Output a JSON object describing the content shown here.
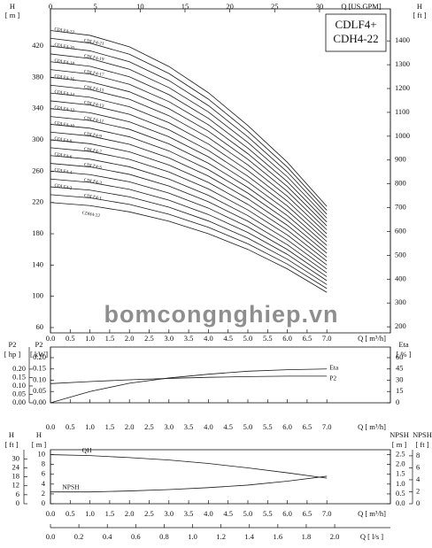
{
  "chart_data": [
    {
      "type": "line",
      "title": [
        "CDLF4+",
        "CDH4-22"
      ],
      "watermark": "bomcongnghiep.vn",
      "x": [
        0,
        1,
        2,
        3,
        4,
        5,
        6,
        7
      ],
      "xlim": [
        0,
        8.61
      ],
      "xticks": [
        {
          "value": 0,
          "label": "0.0"
        },
        0.5,
        {
          "value": 1,
          "label": "1.0"
        },
        1.5,
        {
          "value": 2,
          "label": "2.0"
        },
        2.5,
        {
          "value": 3,
          "label": "3.0"
        },
        3.5,
        {
          "value": 4,
          "label": "4.0"
        },
        4.5,
        {
          "value": 5,
          "label": "5.0"
        },
        5.5,
        {
          "value": 6,
          "label": "6.0"
        },
        6.5,
        {
          "value": 7,
          "label": "7.0"
        }
      ],
      "xlabel": "Q [ m³/h]",
      "x2label": "Q [US.GPM]",
      "x2lim": [
        0,
        37.9
      ],
      "x2ticks": [
        0,
        5,
        10,
        15,
        20,
        25,
        30
      ],
      "ylabel": {
        "name": "H",
        "unit": "[ m ]"
      },
      "ylim": [
        53.2,
        467.7
      ],
      "yticks": [
        60,
        100,
        140,
        180,
        220,
        260,
        300,
        340,
        380,
        420
      ],
      "y2label": {
        "name": "H",
        "unit": "[ ft ]"
      },
      "y2lim": [
        174.5,
        1534.5
      ],
      "y2ticks": [
        200,
        300,
        400,
        500,
        600,
        700,
        800,
        900,
        1000,
        1100,
        1200,
        1300,
        1400
      ],
      "series": [
        {
          "name": "CDLF4-22",
          "color": "#1a1a1a",
          "values": [
            440,
            433.8,
            419.2,
            394,
            360.4,
            318.4,
            271.4,
            215
          ]
        },
        {
          "name": "CDLF4-21",
          "color": "#1a1a1a",
          "values": [
            430,
            423.9,
            409.6,
            385,
            352.2,
            311.2,
            265.2,
            210
          ]
        },
        {
          "name": "CDLF4-20",
          "color": "#1a1a1a",
          "values": [
            420,
            414,
            400,
            376,
            344,
            304,
            259,
            205
          ]
        },
        {
          "name": "CDLF4-19",
          "color": "#1a1a1a",
          "values": [
            410,
            404.1,
            390.4,
            367,
            335.8,
            296.8,
            252.8,
            200
          ]
        },
        {
          "name": "CDLF4-18",
          "color": "#1a1a1a",
          "values": [
            400,
            394.2,
            380.8,
            358,
            327.6,
            289.6,
            246.6,
            195
          ]
        },
        {
          "name": "CDLF4-17",
          "color": "#1a1a1a",
          "values": [
            390,
            384.3,
            371.2,
            349,
            319.4,
            282.4,
            240.4,
            190
          ]
        },
        {
          "name": "CDLF4-16",
          "color": "#1a1a1a",
          "values": [
            380,
            374.4,
            361.6,
            340,
            311.2,
            275.2,
            234.2,
            185
          ]
        },
        {
          "name": "CDLF4-15",
          "color": "#1a1a1a",
          "values": [
            370,
            364.5,
            352,
            331,
            303,
            268,
            228,
            180
          ]
        },
        {
          "name": "CDLF4-14",
          "color": "#1a1a1a",
          "values": [
            360,
            354.6,
            342.4,
            322,
            294.8,
            260.8,
            221.8,
            175
          ]
        },
        {
          "name": "CDLF4-13",
          "color": "#1a1a1a",
          "values": [
            350,
            344.7,
            332.8,
            313,
            286.6,
            253.6,
            215.6,
            170
          ]
        },
        {
          "name": "CDLF4-12",
          "color": "#1a1a1a",
          "values": [
            340,
            334.8,
            323.2,
            304,
            278.4,
            246.4,
            209.4,
            165
          ]
        },
        {
          "name": "CDLF4-11",
          "color": "#1a1a1a",
          "values": [
            330,
            324.9,
            313.6,
            295,
            270.2,
            239.2,
            203.2,
            160
          ]
        },
        {
          "name": "CDLF4-10",
          "color": "#1a1a1a",
          "values": [
            320,
            315,
            304,
            286,
            262,
            232,
            197,
            155
          ]
        },
        {
          "name": "CDLF4-9",
          "color": "#1a1a1a",
          "values": [
            310,
            305.1,
            294.4,
            277,
            253.8,
            224.8,
            190.8,
            150
          ]
        },
        {
          "name": "CDLF4-8",
          "color": "#1a1a1a",
          "values": [
            300,
            295.2,
            284.8,
            268,
            245.6,
            217.6,
            184.6,
            145
          ]
        },
        {
          "name": "CDLF4-7",
          "color": "#1a1a1a",
          "values": [
            290,
            285.3,
            275.2,
            259,
            237.4,
            210.4,
            178.4,
            140
          ]
        },
        {
          "name": "CDLF4-6",
          "color": "#1a1a1a",
          "values": [
            280,
            275.4,
            265.6,
            250,
            229.2,
            203.2,
            172.2,
            135
          ]
        },
        {
          "name": "CDLF4-5",
          "color": "#1a1a1a",
          "values": [
            270,
            265.5,
            256,
            241,
            221,
            196,
            166,
            130
          ]
        },
        {
          "name": "CDLF4-4",
          "color": "#1a1a1a",
          "values": [
            260,
            255.6,
            246.4,
            232,
            212.8,
            188.8,
            159.8,
            125
          ]
        },
        {
          "name": "CDLF4-3",
          "color": "#1a1a1a",
          "values": [
            250,
            245.7,
            236.8,
            223,
            204.6,
            181.6,
            153.6,
            120
          ]
        },
        {
          "name": "CDLF4-2",
          "color": "#1a1a1a",
          "values": [
            240,
            235.8,
            227.2,
            214,
            196.4,
            174.4,
            147.4,
            115
          ]
        },
        {
          "name": "CDLF4-1",
          "color": "#1a1a1a",
          "values": [
            230,
            225.9,
            217.6,
            205,
            188.2,
            167.2,
            141.2,
            110
          ]
        },
        {
          "name": "CDH4-22",
          "color": "#1a1a1a",
          "values": [
            220,
            216,
            208,
            196,
            180,
            160,
            135,
            105
          ]
        }
      ]
    },
    {
      "type": "line",
      "x": [
        0,
        1,
        2,
        3,
        4,
        5,
        6,
        7
      ],
      "xlim": [
        0,
        8.61
      ],
      "xticks": [
        {
          "value": 0,
          "label": "0.0"
        },
        0.5,
        {
          "value": 1,
          "label": "1.0"
        },
        1.5,
        {
          "value": 2,
          "label": "2.0"
        },
        2.5,
        {
          "value": 3,
          "label": "3.0"
        },
        3.5,
        {
          "value": 4,
          "label": "4.0"
        },
        4.5,
        {
          "value": 5,
          "label": "5.0"
        },
        5.5,
        {
          "value": 6,
          "label": "6.0"
        },
        6.5,
        {
          "value": 7,
          "label": "7.0"
        }
      ],
      "xlabel": "Q [ m³/h]",
      "hplabel": {
        "name": "P2",
        "unit": "[ hp ]"
      },
      "hplim": [
        0,
        0.331
      ],
      "hpticks": [
        {
          "value": 0,
          "label": "0.00"
        },
        0.05,
        {
          "value": 0.1,
          "label": "0.10"
        },
        0.15,
        {
          "value": 0.2,
          "label": "0.20"
        }
      ],
      "ylabel": {
        "name": "P2",
        "unit": "[ kW]"
      },
      "ylim": [
        0,
        0.247
      ],
      "yticks": [
        {
          "value": 0,
          "label": "0.00"
        },
        0.05,
        {
          "value": 0.1,
          "label": "0.10"
        },
        0.15,
        {
          "value": 0.2,
          "label": "0.20"
        }
      ],
      "y2label": {
        "name": "Eta",
        "unit": "[ % ]"
      },
      "y2lim": [
        0,
        74.1
      ],
      "y2ticks": [
        0,
        15,
        30,
        45,
        60
      ],
      "series": [
        {
          "name": "Eta",
          "color": "#1a1a1a",
          "axis": "y2",
          "values": [
            0,
            15,
            26,
            33,
            38,
            42,
            44,
            45
          ]
        },
        {
          "name": "P2",
          "color": "#1a1a1a",
          "values": [
            0.085,
            0.094,
            0.102,
            0.108,
            0.113,
            0.116,
            0.118,
            0.118
          ]
        }
      ]
    },
    {
      "type": "line",
      "x": [
        0,
        1,
        2,
        3,
        4,
        5,
        6,
        7
      ],
      "xlim": [
        0,
        8.61
      ],
      "xticks": [
        {
          "value": 0,
          "label": "0.0"
        },
        0.5,
        {
          "value": 1,
          "label": "1.0"
        },
        1.5,
        {
          "value": 2,
          "label": "2.0"
        },
        2.5,
        {
          "value": 3,
          "label": "3.0"
        },
        3.5,
        {
          "value": 4,
          "label": "4.0"
        },
        4.5,
        {
          "value": 5,
          "label": "5.0"
        },
        5.5,
        {
          "value": 6,
          "label": "6.0"
        },
        6.5,
        {
          "value": 7,
          "label": "7.0"
        }
      ],
      "xlabel": "Q [ m³/h]",
      "x2label": "Q [ l/s ]",
      "x2lim": [
        0,
        2.392
      ],
      "x2ticks": [
        {
          "value": 0,
          "label": "0.0"
        },
        0.2,
        0.4,
        0.6,
        0.8,
        {
          "value": 1,
          "label": "1.0"
        },
        1.2,
        1.4,
        1.6,
        1.8,
        {
          "value": 2,
          "label": "2.0"
        }
      ],
      "hftlabel": {
        "name": "H",
        "unit": "[ ft ]"
      },
      "hftlim": [
        0,
        36.1
      ],
      "hftticks": [
        0,
        6,
        12,
        18,
        24,
        30
      ],
      "ylabel": {
        "name": "H",
        "unit": "[ m ]"
      },
      "ylim": [
        0,
        11
      ],
      "yticks": [
        0,
        2,
        4,
        6,
        8,
        10
      ],
      "y2label": {
        "name": "NPSH",
        "unit": "[ m ]"
      },
      "y2lim": [
        0,
        2.75
      ],
      "y2ticks": [
        {
          "value": 0,
          "label": "0.0"
        },
        0.5,
        {
          "value": 1,
          "label": "1.0"
        },
        1.5,
        {
          "value": 2,
          "label": "2.0"
        },
        2.5
      ],
      "nftlabel": {
        "name": "NPSH",
        "unit": "[ ft ]"
      },
      "nftlim": [
        0,
        9.02
      ],
      "nftticks": [
        0,
        2,
        4,
        6,
        8
      ],
      "series": [
        {
          "name": "QH",
          "color": "#1a1a1a",
          "values": [
            10,
            9.8,
            9.4,
            8.9,
            8.2,
            7.3,
            6.3,
            5.2
          ]
        },
        {
          "name": "NPSH",
          "color": "#1a1a1a",
          "axis": "y2",
          "values": [
            0.6,
            0.6,
            0.65,
            0.72,
            0.82,
            0.95,
            1.15,
            1.4
          ]
        }
      ]
    }
  ]
}
